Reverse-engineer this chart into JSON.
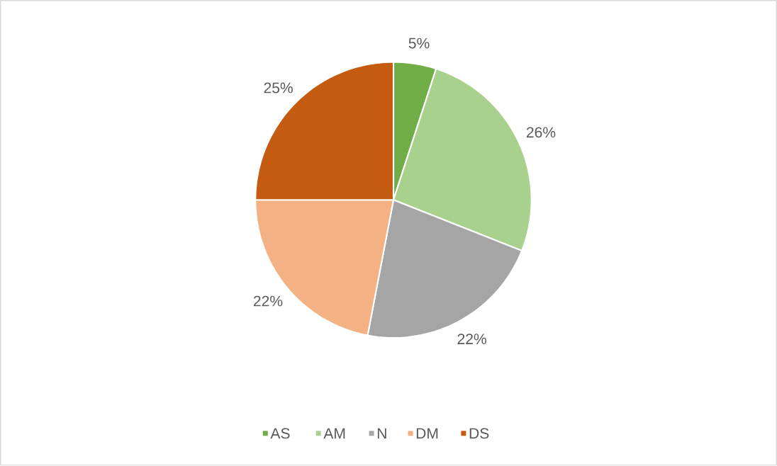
{
  "chart_data": {
    "type": "pie",
    "categories": [
      "AS",
      "AM",
      "N",
      "DM",
      "DS"
    ],
    "values": [
      5,
      26,
      22,
      22,
      25
    ],
    "value_labels": [
      "5%",
      "26%",
      "22%",
      "22%",
      "25%"
    ],
    "colors": [
      "#70ad47",
      "#a9d18e",
      "#a5a5a5",
      "#f4b183",
      "#c55a11"
    ],
    "legend": "bottom"
  }
}
